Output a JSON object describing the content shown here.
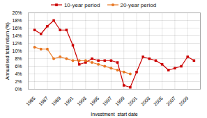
{
  "chart_data": {
    "type": "line",
    "xlabel": "Investment  start date",
    "ylabel": "Annualised total return (%)",
    "x": [
      1985,
      1986,
      1987,
      1988,
      1989,
      1990,
      1991,
      1992,
      1993,
      1994,
      1995,
      1996,
      1997,
      1998,
      1999,
      2000,
      2001,
      2002,
      2003,
      2004,
      2005,
      2006,
      2007,
      2008,
      2009,
      2010
    ],
    "series": [
      {
        "name": "10-year period",
        "color": "#cc0000",
        "marker": "square",
        "values": [
          15.5,
          14.5,
          16.5,
          18.0,
          15.5,
          15.5,
          11.5,
          6.5,
          7.0,
          8.0,
          7.5,
          7.5,
          7.5,
          7.0,
          1.0,
          0.5,
          4.5,
          8.5,
          8.0,
          7.5,
          6.5,
          5.0,
          5.5,
          6.0,
          8.5,
          7.5
        ]
      },
      {
        "name": "20-year period",
        "color": "#e87722",
        "marker": "circle",
        "values": [
          11.0,
          10.5,
          10.5,
          8.0,
          8.5,
          8.0,
          7.5,
          7.5,
          7.5,
          7.0,
          6.5,
          6.0,
          5.5,
          5.0,
          4.5,
          4.0,
          null,
          null,
          null,
          null,
          null,
          null,
          null,
          null,
          null,
          null
        ]
      }
    ],
    "xlim": [
      1984,
      2011
    ],
    "xticks": [
      1985,
      1987,
      1989,
      1991,
      1993,
      1995,
      1997,
      1999,
      2001,
      2003,
      2005,
      2007,
      2009
    ],
    "ylim": [
      0,
      20
    ],
    "yticks": [
      {
        "value": 0,
        "label": "0%"
      },
      {
        "value": 2,
        "label": "2%"
      },
      {
        "value": 4,
        "label": "4%"
      },
      {
        "value": 6,
        "label": "6%"
      },
      {
        "value": 8,
        "label": "8%"
      },
      {
        "value": 10,
        "label": "10%"
      },
      {
        "value": 12,
        "label": "12%"
      },
      {
        "value": 14,
        "label": "14%"
      },
      {
        "value": 16,
        "label": "16%"
      },
      {
        "value": 18,
        "label": "18%"
      },
      {
        "value": 20,
        "label": "20%"
      }
    ],
    "grid": true,
    "legend": "top"
  }
}
